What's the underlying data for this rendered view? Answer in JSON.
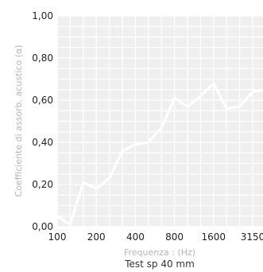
{
  "chart_data": {
    "type": "line",
    "title": "",
    "subtitle": "Test sp 40 mm",
    "xlabel": "Frequenza : (Hz)",
    "ylabel": "Coefficiente di assorb. acustico (α)",
    "x_tick_labels": [
      "100",
      "200",
      "400",
      "800",
      "1600",
      "3150"
    ],
    "y_tick_labels": [
      "0,00",
      "0,20",
      "0,40",
      "0,60",
      "0,80",
      "1,00"
    ],
    "ylim": [
      0,
      1
    ],
    "grid": true,
    "series": [
      {
        "x": [
          "100",
          "125",
          "160",
          "200",
          "250",
          "315",
          "400",
          "500",
          "630",
          "800",
          "1000",
          "1250",
          "1600",
          "2000",
          "2500",
          "3150",
          "4000"
        ],
        "values": [
          0.05,
          0.01,
          0.21,
          0.18,
          0.23,
          0.36,
          0.39,
          0.4,
          0.47,
          0.61,
          0.57,
          0.62,
          0.68,
          0.56,
          0.57,
          0.64,
          0.65
        ]
      }
    ],
    "colors": {
      "plot_bg": "#efefef",
      "grid": "#ffffff",
      "line": "#ffffff"
    }
  }
}
